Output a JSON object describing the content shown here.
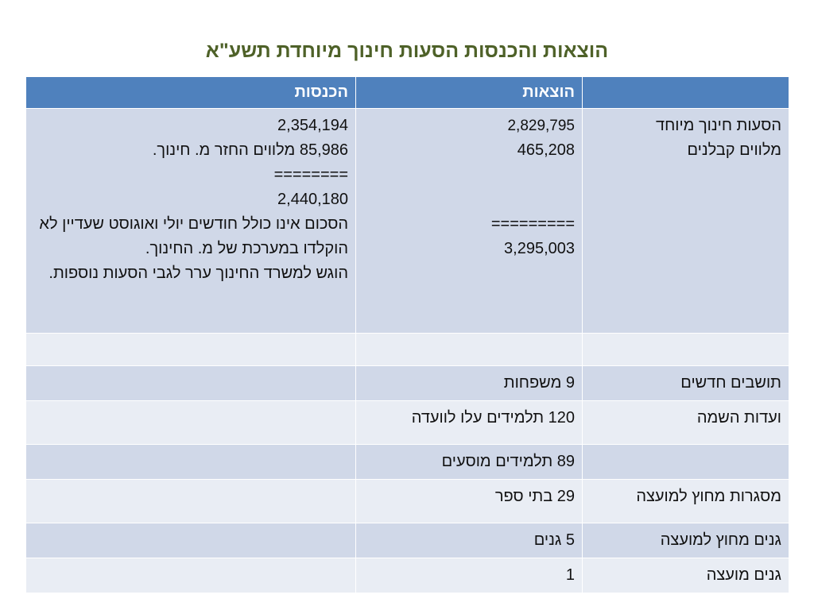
{
  "title": "הוצאות והכנסות הסעות חינוך מיוחדת תשע\"א",
  "columns": {
    "category": "",
    "expenses": "הוצאות",
    "income": "הכנסות"
  },
  "row1": {
    "category_lines": [
      "הסעות חינוך מיוחד",
      "מלווים קבלנים"
    ],
    "expenses_lines": [
      "2,829,795",
      "465,208",
      "",
      "",
      "=========",
      "3,295,003"
    ],
    "income_lines": [
      "2,354,194",
      "85,986 מלווים החזר מ. חינוך.",
      "========",
      "2,440,180",
      "הסכום אינו כולל חודשים יולי ואוגוסט שעדיין לא הוקלדו במערכת של מ. החינוך.",
      "הוגש למשרד החינוך ערר לגבי הסעות נוספות."
    ]
  },
  "rows": [
    {
      "category": "",
      "expenses": "",
      "income": ""
    },
    {
      "category": "תושבים חדשים",
      "expenses": "9 משפחות",
      "income": ""
    },
    {
      "category": "ועדות השמה",
      "expenses": "120 תלמידים עלו לוועדה",
      "income": ""
    },
    {
      "category": "",
      "expenses": "89 תלמידים מוסעים",
      "income": ""
    },
    {
      "category": "מסגרות מחוץ למועצה",
      "expenses": "29 בתי ספר",
      "income": ""
    },
    {
      "category": "גנים מחוץ למועצה",
      "expenses": "5 גנים",
      "income": ""
    },
    {
      "category": "גנים מועצה",
      "expenses": "1",
      "income": ""
    }
  ]
}
